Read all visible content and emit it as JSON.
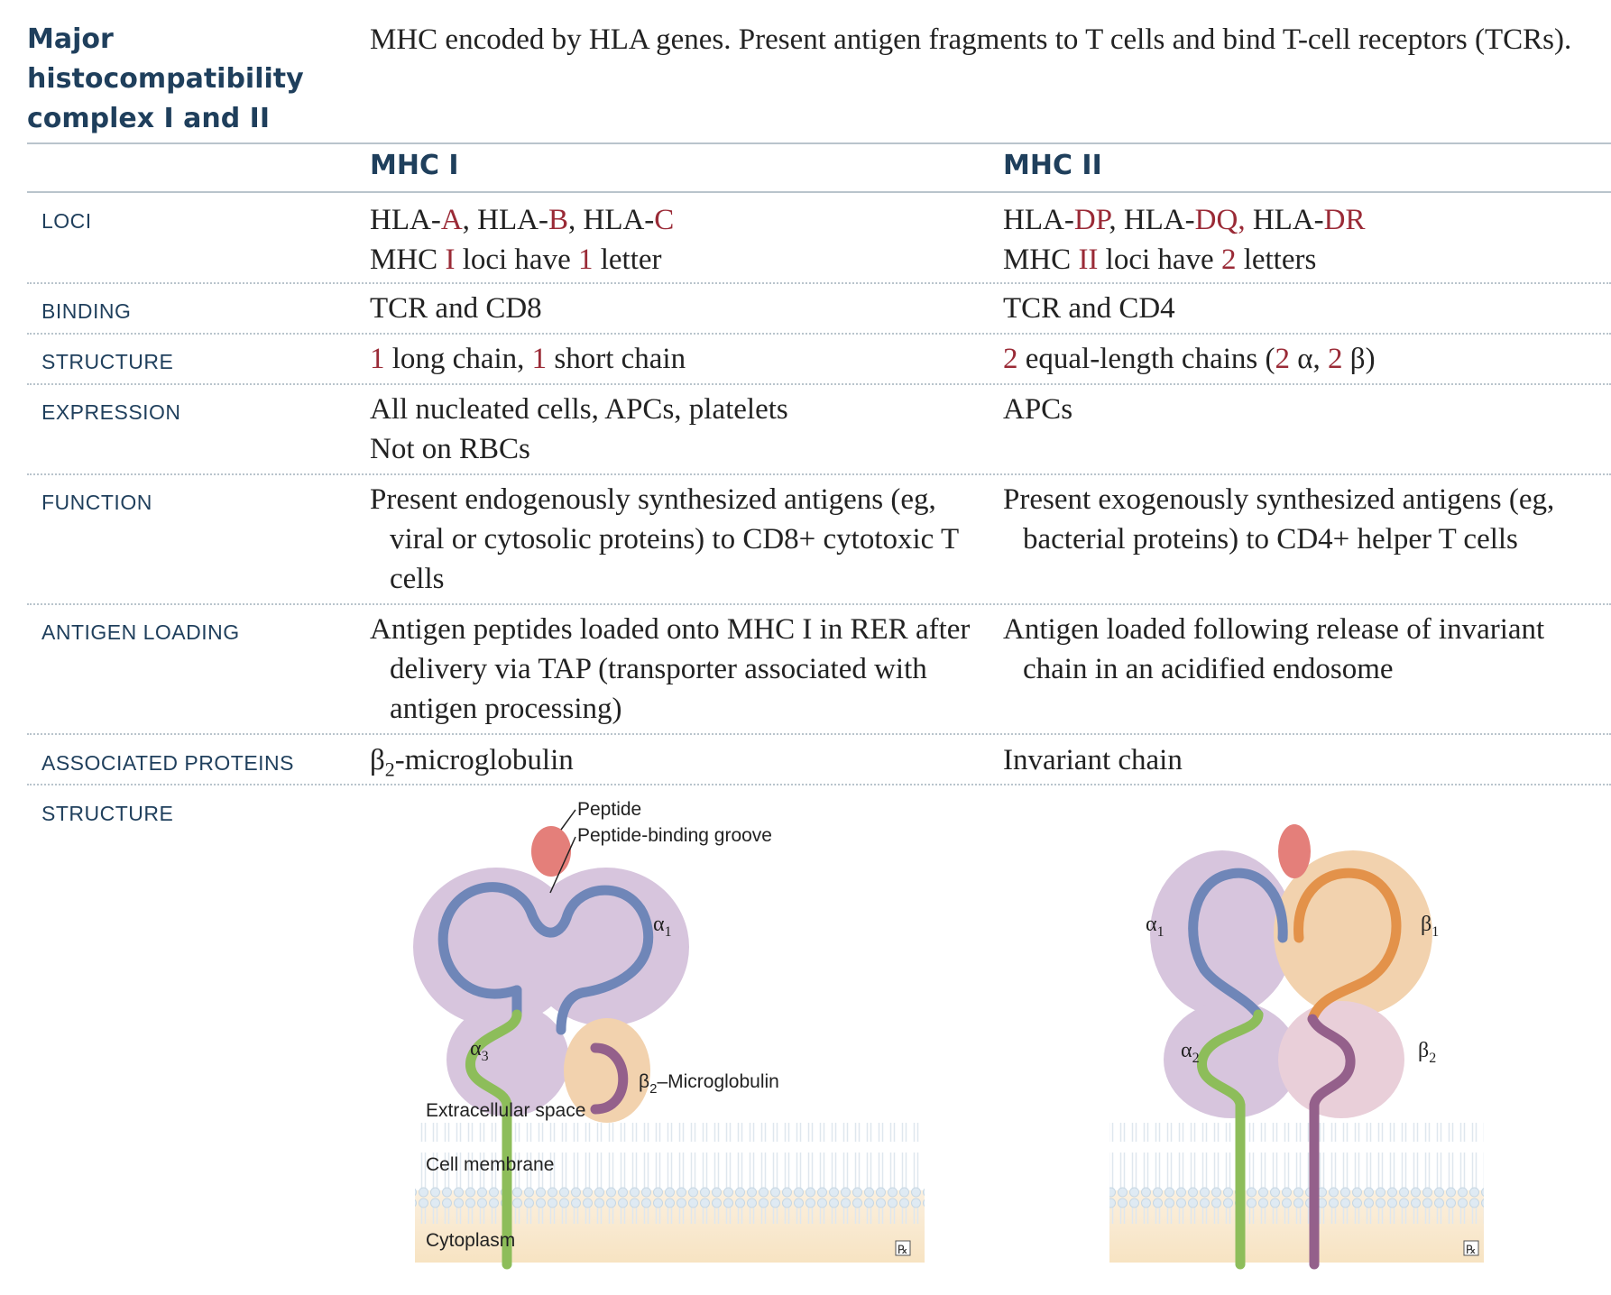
{
  "section": {
    "title_lines": [
      "Major",
      "histocompatibility",
      "complex I and II"
    ],
    "intro": "MHC encoded by HLA genes. Present antigen fragments to T cells and bind T-cell receptors (TCRs)."
  },
  "columns": {
    "mhc1": "MHC I",
    "mhc2": "MHC II"
  },
  "rows": {
    "loci": {
      "label": "LOCI",
      "mhc1": {
        "line1": {
          "p1": "HLA-",
          "r1": "A",
          "p2": ", HLA-",
          "r2": "B",
          "p3": ", HLA-",
          "r3": "C"
        },
        "line2": {
          "p1": "MHC ",
          "r1": "I",
          "p2": " loci have ",
          "r2": "1",
          "p3": " letter"
        }
      },
      "mhc2": {
        "line1": {
          "p1": "HLA-",
          "r1": "DP",
          "p2": ", HLA-",
          "r2": "DQ,",
          "p3": " HLA-",
          "r3": "DR"
        },
        "line2": {
          "p1": "MHC ",
          "r1": "II",
          "p2": " loci have ",
          "r2": "2",
          "p3": " letters"
        }
      }
    },
    "binding": {
      "label": "BINDING",
      "mhc1": "TCR and CD8",
      "mhc2": "TCR and CD4"
    },
    "structure": {
      "label": "STRUCTURE",
      "mhc1": {
        "r1": "1",
        "p1": " long chain, ",
        "r2": "1",
        "p2": " short chain"
      },
      "mhc2": {
        "r1": "2",
        "p1": " equal-length chains (",
        "r2": "2",
        "p2": " α, ",
        "r3": "2",
        "p3": " β)"
      }
    },
    "expression": {
      "label": "EXPRESSION",
      "mhc1": [
        "All nucleated cells, APCs, platelets",
        "Not on RBCs"
      ],
      "mhc2": [
        "APCs"
      ]
    },
    "function": {
      "label": "FUNCTION",
      "mhc1": "Present endogenously synthesized antigens (eg, viral or cytosolic proteins) to CD8+ cytotoxic T cells",
      "mhc2": "Present exogenously synthesized antigens (eg, bacterial proteins) to CD4+ helper T cells"
    },
    "antigen_loading": {
      "label": "ANTIGEN LOADING",
      "mhc1": "Antigen peptides loaded onto MHC I in RER after delivery via TAP (transporter associated with antigen processing)",
      "mhc2": "Antigen loaded following release of invariant chain in an acidified endosome"
    },
    "associated_proteins": {
      "label": "ASSOCIATED PROTEINS",
      "mhc1": {
        "pre": "β",
        "sub": "2",
        "post": "-microglobulin"
      },
      "mhc2": "Invariant chain"
    },
    "structure_diagram": {
      "label": "STRUCTURE"
    }
  },
  "diagram1": {
    "peptide": "Peptide",
    "groove": "Peptide-binding groove",
    "alpha": "α",
    "beta": "β",
    "sub1": "1",
    "sub2": "2",
    "sub3": "3",
    "b2m_suffix": "–Microglobulin",
    "extracellular": "Extracellular space",
    "membrane": "Cell membrane",
    "cytoplasm": "Cytoplasm",
    "logo": "℞"
  },
  "diagram2": {
    "alpha": "α",
    "beta": "β",
    "sub1": "1",
    "sub2": "2",
    "logo": "℞"
  },
  "colors": {
    "heading": "#1f3f5c",
    "accent_red": "#9a2a36",
    "chain_blue": "#6f86b8",
    "chain_green": "#8dbd5a",
    "chain_orange": "#e3924a",
    "chain_purple": "#94608b",
    "domain_lilac": "#d7c5dd",
    "domain_peach": "#f2d2ae",
    "peptide": "#e47f7a"
  }
}
